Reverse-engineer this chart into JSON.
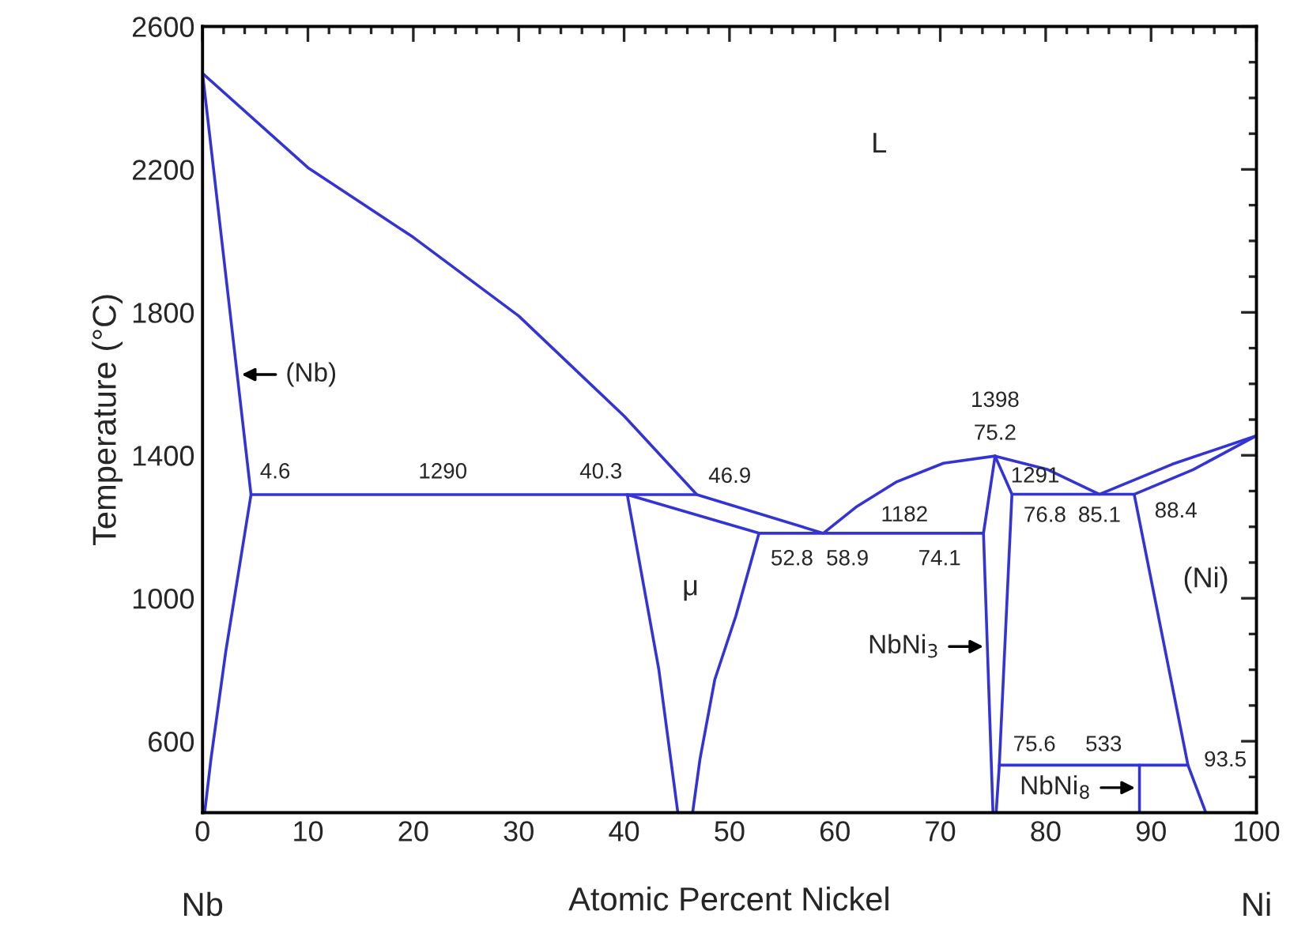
{
  "chart_data": {
    "type": "line",
    "xlabel": "Atomic Percent Nickel",
    "ylabel": "Temperature (°C)",
    "xlim": [
      0,
      100
    ],
    "xticks": [
      0,
      10,
      20,
      30,
      40,
      50,
      60,
      70,
      80,
      90,
      100
    ],
    "ylim": [
      400,
      2600
    ],
    "yticks": [
      600,
      1000,
      1400,
      1800,
      2200,
      2600
    ],
    "grid": false,
    "marker": "none",
    "line_style": "solid",
    "series": [
      {
        "color": "#3333d6",
        "x": [
          0,
          10,
          20,
          30,
          40,
          46.9,
          58.9,
          62,
          65.8,
          70.3,
          75.2,
          80.2,
          85.1,
          92,
          100
        ],
        "values": [
          2469,
          2205,
          2010,
          1790,
          1510,
          1290,
          1182,
          1255,
          1325,
          1378,
          1398,
          1360,
          1291,
          1375,
          1455
        ]
      },
      {
        "color": "#3333d6",
        "x": [
          0,
          2.3,
          4.6,
          2.2,
          0.8,
          0.2
        ],
        "values": [
          2469,
          1880,
          1290,
          850,
          550,
          400
        ]
      },
      {
        "color": "#3333d6",
        "x": [
          4.6,
          46.9
        ],
        "values": [
          1290,
          1290
        ]
      },
      {
        "color": "#3333d6",
        "x": [
          45.1,
          43.3,
          40.3,
          52.8,
          74.1
        ],
        "values": [
          400,
          800,
          1290,
          1182,
          1182
        ]
      },
      {
        "color": "#3333d6",
        "x": [
          52.8,
          50.6,
          48.6,
          47.2,
          46.5
        ],
        "values": [
          1182,
          950,
          772,
          550,
          400
        ]
      },
      {
        "color": "#3333d6",
        "x": [
          75.2,
          74.1,
          75.0
        ],
        "values": [
          1398,
          1182,
          400
        ]
      },
      {
        "color": "#3333d6",
        "x": [
          75.2,
          76.8,
          75.6,
          75.3
        ],
        "values": [
          1398,
          1291,
          533,
          400
        ]
      },
      {
        "color": "#3333d6",
        "x": [
          76.8,
          88.4
        ],
        "values": [
          1291,
          1291
        ]
      },
      {
        "color": "#3333d6",
        "x": [
          100,
          94,
          88.4,
          93.5,
          95.2
        ],
        "values": [
          1455,
          1360,
          1291,
          533,
          400
        ]
      },
      {
        "color": "#3333d6",
        "x": [
          75.6,
          93.5
        ],
        "values": [
          533,
          533
        ]
      },
      {
        "color": "#3333d6",
        "x": [
          88.9,
          88.9
        ],
        "values": [
          533,
          400
        ]
      }
    ],
    "annotations": [
      "L",
      {
        "text": "(Nb)",
        "x": 3.3,
        "y": 1626
      },
      {
        "text": "4.6",
        "x": 4.6,
        "y": 1290
      },
      {
        "text": "1290",
        "x": 22.8,
        "y": 1290
      },
      {
        "text": "40.3",
        "x": 40.3,
        "y": 1290
      },
      {
        "text": "46.9",
        "x": 46.9,
        "y": 1290
      },
      {
        "text": "52.8",
        "x": 52.8,
        "y": 1182
      },
      {
        "text": "58.9",
        "x": 58.9,
        "y": 1182
      },
      {
        "text": "1182",
        "x": 66.6,
        "y": 1182
      },
      {
        "text": "74.1",
        "x": 74.1,
        "y": 1182
      },
      {
        "text": "1398",
        "x": 75.2,
        "y": 1398
      },
      {
        "text": "75.2",
        "x": 75.2,
        "y": 1398
      },
      {
        "text": "1291",
        "x": 79.0,
        "y": 1291
      },
      {
        "text": "76.8",
        "x": 76.8,
        "y": 1291
      },
      {
        "text": "85.1",
        "x": 85.1,
        "y": 1291
      },
      {
        "text": "88.4",
        "x": 88.4,
        "y": 1291
      },
      "μ",
      "(Ni)",
      {
        "text": "NbNi$_{3}$",
        "x": 74.5,
        "y": 865
      },
      {
        "text": "75.6",
        "x": 75.6,
        "y": 533
      },
      {
        "text": "533",
        "x": 85.5,
        "y": 533
      },
      {
        "text": "93.5",
        "x": 93.5,
        "y": 533
      },
      {
        "text": "NbNi$_{8}$",
        "x": 88.9,
        "y": 470
      },
      "Nb",
      "Ni"
    ]
  }
}
